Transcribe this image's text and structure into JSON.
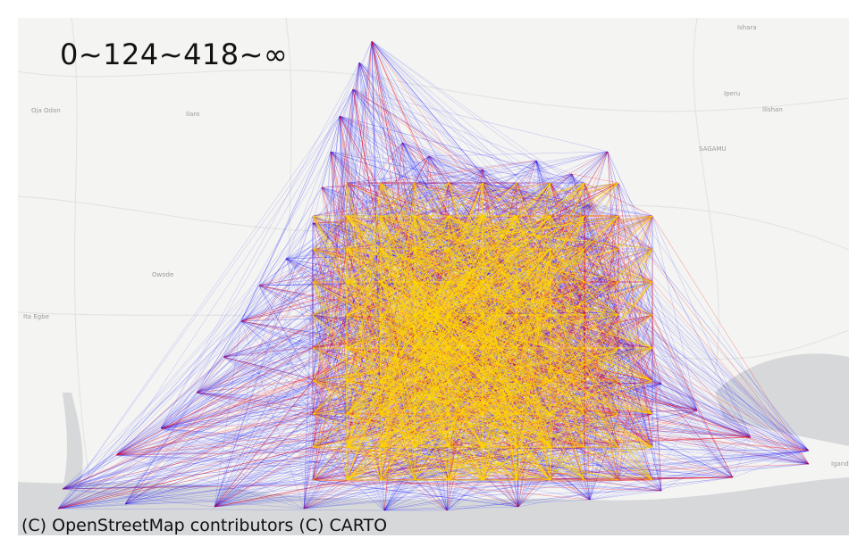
{
  "legend": {
    "label": "0~124~418~∞"
  },
  "attribution": "(C) OpenStreetMap contributors (C) CARTO",
  "places": [
    {
      "name": "Ishara",
      "id": "ishara"
    },
    {
      "name": "Iperu",
      "id": "iperu"
    },
    {
      "name": "Ilishan",
      "id": "ilishan"
    },
    {
      "name": "SAGAMU",
      "id": "sagamu"
    },
    {
      "name": "Oja Odan",
      "id": "oja-odan"
    },
    {
      "name": "Ilaro",
      "id": "ilaro"
    },
    {
      "name": "Owode",
      "id": "owode"
    },
    {
      "name": "Ita Egbe",
      "id": "ita-egbe"
    },
    {
      "name": "Igand",
      "id": "igand"
    }
  ],
  "colors": {
    "background": "#f4f4f2",
    "water": "#d4d6d8",
    "road": "#e2e2e2",
    "flow_low": "#0000ff",
    "flow_mid": "#ff0000",
    "flow_high": "#ffd700"
  },
  "flow_classes": [
    {
      "range": "0~124",
      "color": "blue"
    },
    {
      "range": "124~418",
      "color": "red"
    },
    {
      "range": "418~∞",
      "color": "yellow"
    }
  ]
}
